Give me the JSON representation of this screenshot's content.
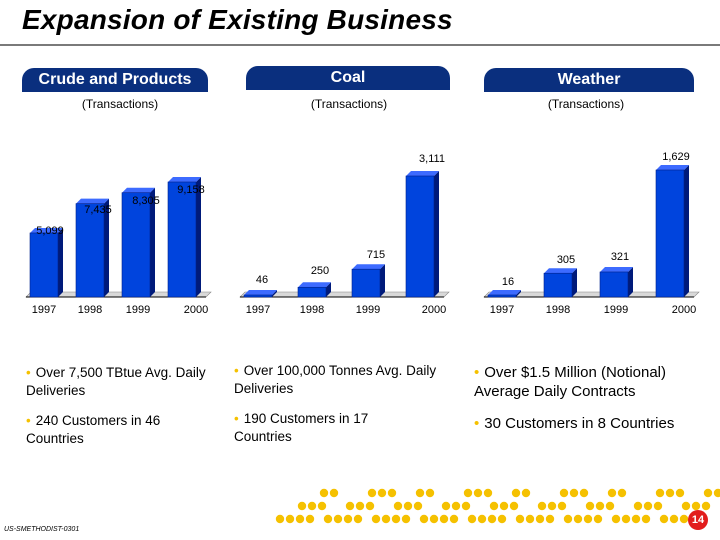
{
  "page_title": "Expansion of Existing Business",
  "panels": [
    {
      "header": "Crude and Products",
      "subtitle": "(Transactions)"
    },
    {
      "header": "Coal",
      "subtitle": "(Transactions)"
    },
    {
      "header": "Weather",
      "subtitle": "(Transactions)"
    }
  ],
  "chart_data": [
    {
      "type": "bar",
      "title": "Crude and Products",
      "subtitle": "(Transactions)",
      "categories": [
        "1997",
        "1998",
        "1999",
        "2000"
      ],
      "values": [
        5099,
        7435,
        8305,
        9158
      ],
      "labels": [
        "5,099",
        "7,435",
        "8,305",
        "9,158"
      ]
    },
    {
      "type": "bar",
      "title": "Coal",
      "subtitle": "(Transactions)",
      "categories": [
        "1997",
        "1998",
        "1999",
        "2000"
      ],
      "values": [
        46,
        250,
        715,
        3111
      ],
      "labels": [
        "46",
        "250",
        "715",
        "3,111"
      ]
    },
    {
      "type": "bar",
      "title": "Weather",
      "subtitle": "(Transactions)",
      "categories": [
        "1997",
        "1998",
        "1999",
        "2000"
      ],
      "values": [
        16,
        305,
        321,
        1629
      ],
      "labels": [
        "16",
        "305",
        "321",
        "1,629"
      ]
    }
  ],
  "bullets": {
    "crude": [
      "Over 7,500 TBtue Avg. Daily Deliveries",
      "240 Customers in 46 Countries"
    ],
    "coal": [
      "Over 100,000 Tonnes Avg. Daily Deliveries",
      "190 Customers in 17 Countries"
    ],
    "weather": [
      "Over $1.5 Million (Notional) Average Daily Contracts",
      "30 Customers in 8 Countries"
    ]
  },
  "footer_code": "US-SMETHODIST-0301",
  "page_number": "14",
  "colors": {
    "bar": "#0044dd",
    "bar_side": "#001a7a",
    "header": "#0a2f7e",
    "bullet": "#f5c100",
    "dots": "#f5c100",
    "badge": "#e21d1d"
  }
}
